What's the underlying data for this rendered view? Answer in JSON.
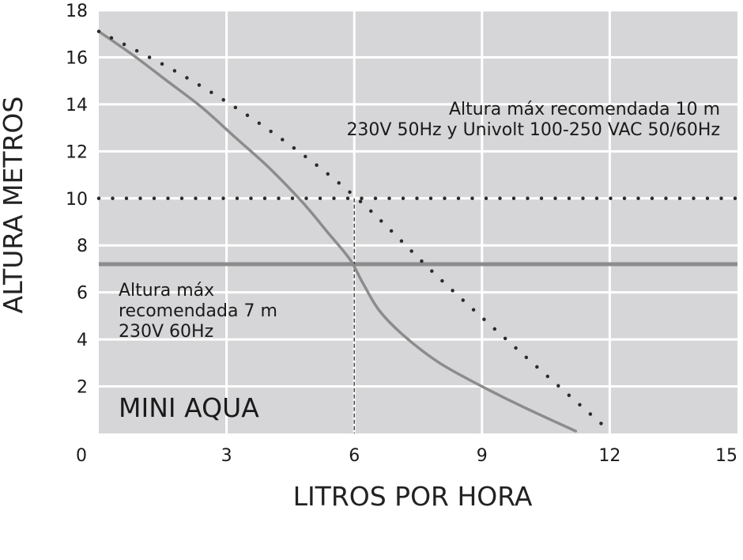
{
  "chart_data": {
    "type": "line",
    "title": "",
    "xlabel": "LITROS POR HORA",
    "ylabel": "ALTURA METROS",
    "xlim": [
      0,
      15
    ],
    "ylim": [
      0,
      18
    ],
    "xticks": [
      0,
      3,
      6,
      9,
      12,
      15
    ],
    "yticks": [
      2,
      4,
      6,
      8,
      10,
      12,
      14,
      16,
      18
    ],
    "grid": true,
    "colors": {
      "plot_background": "#d6d6d8",
      "grid": "#ffffff",
      "curve": "#8c8c8c",
      "dotted": "#2b2b2b",
      "text": "#1a1a1a"
    },
    "series": [
      {
        "style": "solid",
        "x": [
          0,
          0.8,
          1.6,
          2.4,
          3.2,
          4.0,
          4.8,
          5.4,
          5.9,
          6.2,
          6.6,
          7.2,
          8.0,
          9.0,
          10.0,
          11.2
        ],
        "y": [
          17.1,
          16.1,
          15.0,
          13.9,
          12.6,
          11.3,
          9.8,
          8.5,
          7.4,
          6.4,
          5.2,
          4.1,
          3.0,
          2.0,
          1.1,
          0.1
        ]
      },
      {
        "style": "dotted",
        "x": [
          0,
          2.0,
          4.0,
          6.0,
          8.0,
          10.0,
          12.0
        ],
        "y": [
          17.1,
          15.2,
          12.9,
          10.1,
          6.6,
          3.3,
          0.1
        ]
      }
    ],
    "reference_lines": [
      {
        "orientation": "horizontal",
        "value": 10,
        "style": "dotted",
        "label_lines": [
          "Altura máx recomendada 10 m",
          "230V 50Hz y Univolt 100-250 VAC 50/60Hz"
        ]
      },
      {
        "orientation": "horizontal",
        "value": 7.2,
        "style": "solid",
        "label_lines": [
          "Altura máx",
          "recomendada 7 m",
          "230V 60Hz"
        ]
      },
      {
        "orientation": "vertical",
        "value": 6,
        "style": "dashed"
      }
    ],
    "annotations": {
      "product_name": "MINI AQUA"
    }
  }
}
